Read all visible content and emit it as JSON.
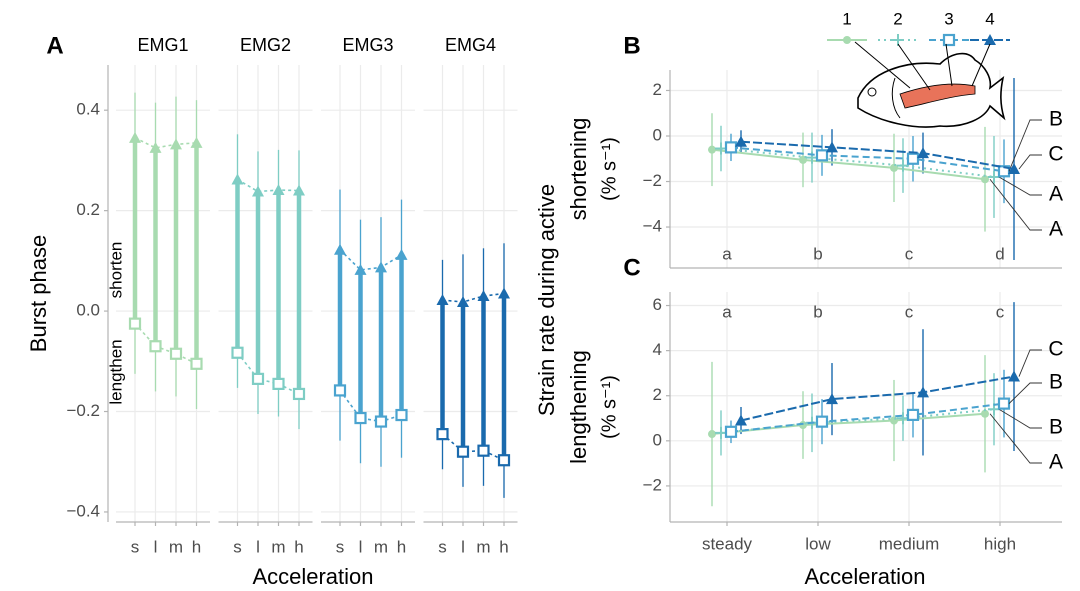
{
  "chart_data": [
    {
      "type": "phase",
      "label": "A",
      "ylabel": "Burst phase",
      "xlabel": "Acceleration",
      "ylim": [
        -0.42,
        0.49
      ],
      "yticks": [
        {
          "value": -0.4,
          "label": "−0.4"
        },
        {
          "value": -0.2,
          "label": "−0.2"
        },
        {
          "value": 0,
          "label": "0.0"
        },
        0.2,
        0.4
      ],
      "annotations": [
        "shorten",
        "lengthen"
      ],
      "facets": [
        {
          "title": "EMG1",
          "color": "#a8dbb0",
          "categories": [
            "s",
            "l",
            "m",
            "h"
          ],
          "offset": [
            0.345,
            0.325,
            0.332,
            0.335
          ],
          "offset_err": [
            0.09,
            0.09,
            0.095,
            0.085
          ],
          "onset": [
            -0.025,
            -0.07,
            -0.085,
            -0.105
          ],
          "onset_err": [
            0.1,
            0.09,
            0.085,
            0.09
          ]
        },
        {
          "title": "EMG2",
          "color": "#7ecdc4",
          "categories": [
            "s",
            "l",
            "m",
            "h"
          ],
          "offset": [
            0.262,
            0.238,
            0.241,
            0.24
          ],
          "offset_err": [
            0.09,
            0.08,
            0.08,
            0.08
          ],
          "onset": [
            -0.083,
            -0.135,
            -0.145,
            -0.165
          ],
          "onset_err": [
            0.07,
            0.07,
            0.065,
            0.07
          ]
        },
        {
          "title": "EMG3",
          "color": "#4aa3cf",
          "categories": [
            "s",
            "l",
            "m",
            "h"
          ],
          "offset": [
            0.122,
            0.082,
            0.087,
            0.112
          ],
          "offset_err": [
            0.12,
            0.1,
            0.1,
            0.11
          ],
          "onset": [
            -0.158,
            -0.213,
            -0.22,
            -0.207
          ],
          "onset_err": [
            0.1,
            0.09,
            0.09,
            0.085
          ]
        },
        {
          "title": "EMG4",
          "color": "#1a6aad",
          "categories": [
            "s",
            "l",
            "m",
            "h"
          ],
          "offset": [
            0.022,
            0.018,
            0.03,
            0.035
          ],
          "offset_err": [
            0.08,
            0.095,
            0.095,
            0.1
          ],
          "onset": [
            -0.245,
            -0.28,
            -0.278,
            -0.297
          ],
          "onset_err": [
            0.07,
            0.07,
            0.07,
            0.075
          ]
        }
      ]
    },
    {
      "type": "line",
      "label": "B",
      "ylabel_shared": "Strain rate during active",
      "ylabel": "shortening",
      "yunit": "(% s⁻¹)",
      "ylim": [
        -5.8,
        2.9
      ],
      "yticks": [
        {
          "value": -4,
          "label": "−4"
        },
        {
          "value": -2,
          "label": "−2"
        },
        0,
        2
      ],
      "letters": [
        "a",
        "b",
        "c",
        "d"
      ],
      "series": [
        {
          "name": "1",
          "color": "#a8dbb0",
          "marker": "circle",
          "dash": "none",
          "end_label": "A",
          "values": [
            -0.6,
            -1.05,
            -1.4,
            -1.9
          ],
          "errors": [
            1.6,
            1.2,
            1.5,
            2.3
          ]
        },
        {
          "name": "2",
          "color": "#7ecdc4",
          "marker": "plus",
          "dash": "2,4",
          "end_label": "A",
          "values": [
            -0.55,
            -0.95,
            -1.3,
            -1.8
          ],
          "errors": [
            1.0,
            1.1,
            1.2,
            1.8
          ]
        },
        {
          "name": "3",
          "color": "#4aa3cf",
          "marker": "square",
          "dash": "7,4",
          "end_label": "B",
          "values": [
            -0.5,
            -0.85,
            -1.0,
            -1.55
          ],
          "errors": [
            0.6,
            0.9,
            1.0,
            1.4
          ]
        },
        {
          "name": "4",
          "color": "#1a6aad",
          "marker": "triangle",
          "dash": "9,3",
          "end_label": "C",
          "values": [
            -0.25,
            -0.5,
            -0.75,
            -1.45
          ],
          "errors": [
            0.5,
            0.8,
            0.9,
            4.0
          ]
        }
      ]
    },
    {
      "type": "line",
      "label": "C",
      "ylabel": "lengthening",
      "yunit": "(% s⁻¹)",
      "xlabel": "Acceleration",
      "categories": [
        "steady",
        "low",
        "medium",
        "high"
      ],
      "ylim": [
        -3.6,
        6.6
      ],
      "yticks": [
        {
          "value": -2,
          "label": "−2"
        },
        0,
        2,
        4,
        6
      ],
      "letters": [
        "a",
        "b",
        "c",
        "c"
      ],
      "series": [
        {
          "color": "#a8dbb0",
          "marker": "circle",
          "dash": "none",
          "end_label": "A",
          "values": [
            0.3,
            0.7,
            0.9,
            1.2
          ],
          "errors": [
            3.2,
            1.5,
            1.8,
            2.6
          ]
        },
        {
          "color": "#7ecdc4",
          "marker": "plus",
          "dash": "2,4",
          "end_label": "B",
          "values": [
            0.35,
            0.8,
            1.0,
            1.4
          ],
          "errors": [
            1.0,
            1.3,
            1.0,
            1.6
          ]
        },
        {
          "color": "#4aa3cf",
          "marker": "square",
          "dash": "7,4",
          "end_label": "B",
          "values": [
            0.4,
            0.85,
            1.15,
            1.65
          ],
          "errors": [
            0.5,
            1.0,
            1.0,
            1.5
          ]
        },
        {
          "color": "#1a6aad",
          "marker": "triangle",
          "dash": "9,3",
          "end_label": "C",
          "values": [
            0.9,
            1.85,
            2.15,
            2.85
          ],
          "errors": [
            0.6,
            1.6,
            2.8,
            3.3
          ]
        }
      ]
    }
  ]
}
